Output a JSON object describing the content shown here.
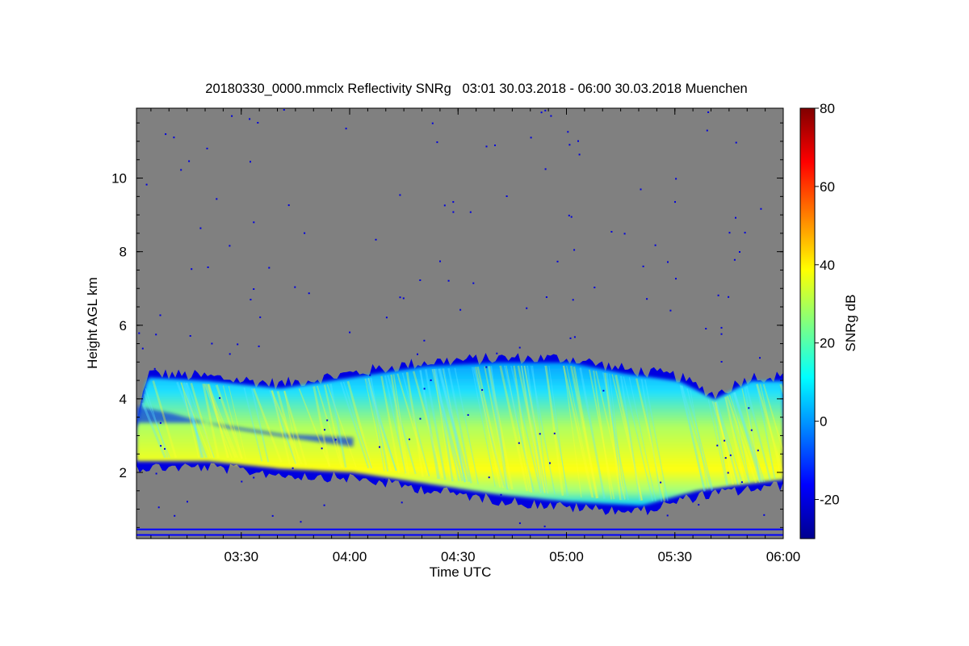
{
  "chart_data": {
    "type": "heatmap",
    "title": "20180330_0000.mmclx Reflectivity SNRg   03:01 30.03.2018 - 06:00 30.03.2018 Muenchen",
    "xlabel": "Time UTC",
    "ylabel": "Height AGL km",
    "colorbar_label": "SNRg dB",
    "x_range": [
      "03:01",
      "06:00"
    ],
    "x_ticks": [
      "03:30",
      "04:00",
      "04:30",
      "05:00",
      "05:30",
      "06:00"
    ],
    "y_range": [
      0.2,
      11.9
    ],
    "y_ticks": [
      2,
      4,
      6,
      8,
      10
    ],
    "colorbar_range": [
      -30,
      80
    ],
    "colorbar_ticks": [
      -20,
      0,
      20,
      40,
      60,
      80
    ],
    "colormap": [
      "#00008f",
      "#0000ff",
      "#0080ff",
      "#00ffff",
      "#80ff80",
      "#ffff00",
      "#ff8000",
      "#ff0000",
      "#800000"
    ],
    "background_color": "#808080",
    "layer": {
      "top_km": [
        [
          0,
          3.3
        ],
        [
          3,
          4.7
        ],
        [
          20,
          4.6
        ],
        [
          40,
          4.4
        ],
        [
          60,
          4.7
        ],
        [
          80,
          5.0
        ],
        [
          100,
          5.1
        ],
        [
          120,
          5.1
        ],
        [
          135,
          4.8
        ],
        [
          150,
          4.6
        ],
        [
          160,
          4.1
        ],
        [
          170,
          4.6
        ],
        [
          179,
          4.6
        ]
      ],
      "base_km": [
        [
          0,
          2.2
        ],
        [
          20,
          2.2
        ],
        [
          40,
          2.0
        ],
        [
          60,
          1.9
        ],
        [
          80,
          1.6
        ],
        [
          100,
          1.3
        ],
        [
          120,
          1.1
        ],
        [
          140,
          1.0
        ],
        [
          155,
          1.4
        ],
        [
          170,
          1.6
        ],
        [
          179,
          1.7
        ]
      ],
      "upper_branch_km": [
        [
          0,
          4.1
        ],
        [
          10,
          3.9
        ],
        [
          25,
          3.5
        ],
        [
          45,
          3.2
        ],
        [
          60,
          3.0
        ]
      ],
      "gap_km": [
        [
          0,
          3.3
        ],
        [
          20,
          3.3
        ],
        [
          40,
          3.0
        ],
        [
          60,
          2.9
        ]
      ],
      "core_snr_db": 40
    },
    "ground_clutter_km": [
      0.3,
      0.45
    ]
  }
}
